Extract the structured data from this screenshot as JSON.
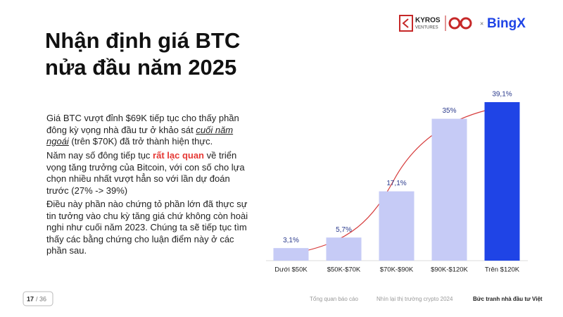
{
  "header": {
    "title_line1": "Nhận định giá BTC",
    "title_line2": "nửa đầu năm 2025",
    "logo_kyros": "KYROS",
    "logo_ventures": "VENTURES",
    "logo_x": "×",
    "logo_bingx": "BingX"
  },
  "paragraphs": [
    [
      "Giá BTC vượt đỉnh $69K tiếp tục cho thấy phần đông kỳ vọng nhà đầu tư ở khảo sát ",
      "cuối năm ngoái",
      " (trên $70K) đã trở thành hiện thực."
    ],
    [
      "Năm nay số đông tiếp tục ",
      "rất lạc quan",
      " về triển vọng tăng trưởng của Bitcoin, với con số cho lựa chọn nhiều nhất vượt hẳn so với lần dự đoán trước (27% -> 39%)"
    ],
    [
      "Điều này phần nào chứng tỏ phần lớn đã thực sự tin tưởng vào chu kỳ tăng giá chứ không còn hoài nghi như cuối năm 2023. Chúng ta sẽ tiếp tục tìm thấy các bằng chứng cho luận điểm này ở các phần sau."
    ]
  ],
  "chart_data": {
    "type": "bar",
    "categories": [
      "Dưới $50K",
      "$50K-$70K",
      "$70K-$90K",
      "$90K-$120K",
      "Trên $120K"
    ],
    "values": [
      3.1,
      5.7,
      17.1,
      35,
      39.1
    ],
    "value_labels": [
      "3,1%",
      "5,7%",
      "17,1%",
      "35%",
      "39,1%"
    ],
    "colors": [
      "#c6cbf6",
      "#c6cbf6",
      "#c6cbf6",
      "#c6cbf6",
      "#1f44e6"
    ]
  },
  "footer": {
    "page": "17",
    "page_total": "/ 36",
    "nav1": "Tổng quan báo cáo",
    "nav2": "Nhìn lại thị trường crypto 2024",
    "nav3": "Bức tranh nhà đầu tư Việt"
  }
}
